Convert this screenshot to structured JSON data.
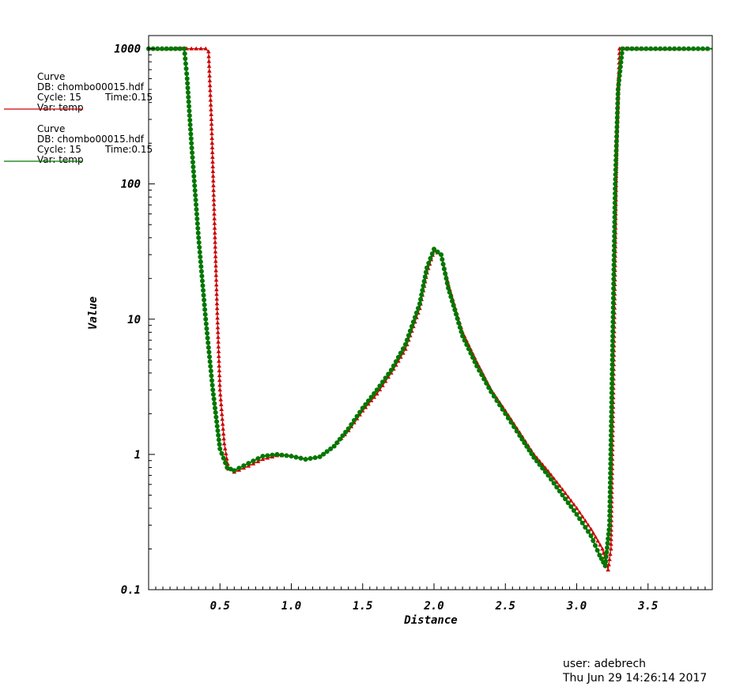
{
  "chart_data": {
    "type": "line",
    "xlabel": "Distance",
    "ylabel": "Value",
    "x_ticks": [
      "0.5",
      "1.0",
      "1.5",
      "2.0",
      "2.5",
      "3.0",
      "3.5"
    ],
    "x_tick_values": [
      0.5,
      1.0,
      1.5,
      2.0,
      2.5,
      3.0,
      3.5
    ],
    "y_ticks": [
      "0.1",
      "1",
      "10",
      "100",
      "1000"
    ],
    "y_tick_values": [
      0.1,
      1,
      10,
      100,
      1000
    ],
    "xlim": [
      0.0,
      3.95
    ],
    "ylim": [
      0.1,
      1250
    ],
    "y_scale": "log",
    "grid": false,
    "series": [
      {
        "color": "#cc0000",
        "marker": "triangle",
        "points": [
          [
            0.0,
            1000
          ],
          [
            0.4,
            1000
          ],
          [
            0.42,
            950
          ],
          [
            0.44,
            300
          ],
          [
            0.46,
            60
          ],
          [
            0.48,
            12
          ],
          [
            0.5,
            3
          ],
          [
            0.53,
            1.2
          ],
          [
            0.56,
            0.78
          ],
          [
            0.6,
            0.74
          ],
          [
            0.7,
            0.82
          ],
          [
            0.8,
            0.92
          ],
          [
            0.9,
            0.98
          ],
          [
            1.0,
            0.98
          ],
          [
            1.1,
            0.93
          ],
          [
            1.2,
            0.96
          ],
          [
            1.3,
            1.15
          ],
          [
            1.4,
            1.5
          ],
          [
            1.5,
            2.1
          ],
          [
            1.6,
            2.8
          ],
          [
            1.7,
            4.0
          ],
          [
            1.8,
            6.0
          ],
          [
            1.9,
            12
          ],
          [
            1.95,
            22
          ],
          [
            2.0,
            32
          ],
          [
            2.05,
            30
          ],
          [
            2.1,
            18
          ],
          [
            2.2,
            8
          ],
          [
            2.3,
            4.8
          ],
          [
            2.4,
            3.0
          ],
          [
            2.5,
            2.1
          ],
          [
            2.6,
            1.45
          ],
          [
            2.7,
            1.0
          ],
          [
            2.8,
            0.75
          ],
          [
            2.9,
            0.55
          ],
          [
            3.0,
            0.4
          ],
          [
            3.1,
            0.28
          ],
          [
            3.18,
            0.2
          ],
          [
            3.22,
            0.14
          ],
          [
            3.24,
            0.2
          ],
          [
            3.26,
            5
          ],
          [
            3.28,
            200
          ],
          [
            3.3,
            1000
          ],
          [
            3.95,
            1000
          ]
        ]
      },
      {
        "color": "#007700",
        "marker": "circle",
        "points": [
          [
            0.0,
            1000
          ],
          [
            0.25,
            1000
          ],
          [
            0.27,
            600
          ],
          [
            0.3,
            200
          ],
          [
            0.35,
            40
          ],
          [
            0.4,
            10
          ],
          [
            0.45,
            3
          ],
          [
            0.5,
            1.1
          ],
          [
            0.55,
            0.8
          ],
          [
            0.6,
            0.76
          ],
          [
            0.7,
            0.86
          ],
          [
            0.8,
            0.97
          ],
          [
            0.9,
            1.0
          ],
          [
            1.0,
            0.97
          ],
          [
            1.1,
            0.92
          ],
          [
            1.2,
            0.96
          ],
          [
            1.3,
            1.15
          ],
          [
            1.4,
            1.55
          ],
          [
            1.5,
            2.2
          ],
          [
            1.6,
            3.0
          ],
          [
            1.7,
            4.2
          ],
          [
            1.8,
            6.5
          ],
          [
            1.9,
            13
          ],
          [
            1.95,
            24
          ],
          [
            2.0,
            33
          ],
          [
            2.05,
            30
          ],
          [
            2.1,
            17
          ],
          [
            2.2,
            7.5
          ],
          [
            2.3,
            4.5
          ],
          [
            2.4,
            2.9
          ],
          [
            2.5,
            2.0
          ],
          [
            2.6,
            1.38
          ],
          [
            2.7,
            0.95
          ],
          [
            2.8,
            0.7
          ],
          [
            2.9,
            0.5
          ],
          [
            3.0,
            0.36
          ],
          [
            3.1,
            0.25
          ],
          [
            3.16,
            0.18
          ],
          [
            3.2,
            0.15
          ],
          [
            3.23,
            0.3
          ],
          [
            3.25,
            5
          ],
          [
            3.27,
            100
          ],
          [
            3.29,
            500
          ],
          [
            3.32,
            1000
          ],
          [
            3.95,
            1000
          ]
        ]
      }
    ]
  },
  "legend": [
    {
      "title": "Curve",
      "db": "DB: chombo00015.hdf",
      "cycle": "Cycle: 15",
      "time": "Time:0.15",
      "var": "Var: temp",
      "color": "#cc0000"
    },
    {
      "title": "Curve",
      "db": "DB: chombo00015.hdf",
      "cycle": "Cycle: 15",
      "time": "Time:0.15",
      "var": "Var: temp",
      "color": "#007700"
    }
  ],
  "footer": {
    "user": "user: adebrech",
    "date": "Thu Jun 29 14:26:14 2017"
  }
}
